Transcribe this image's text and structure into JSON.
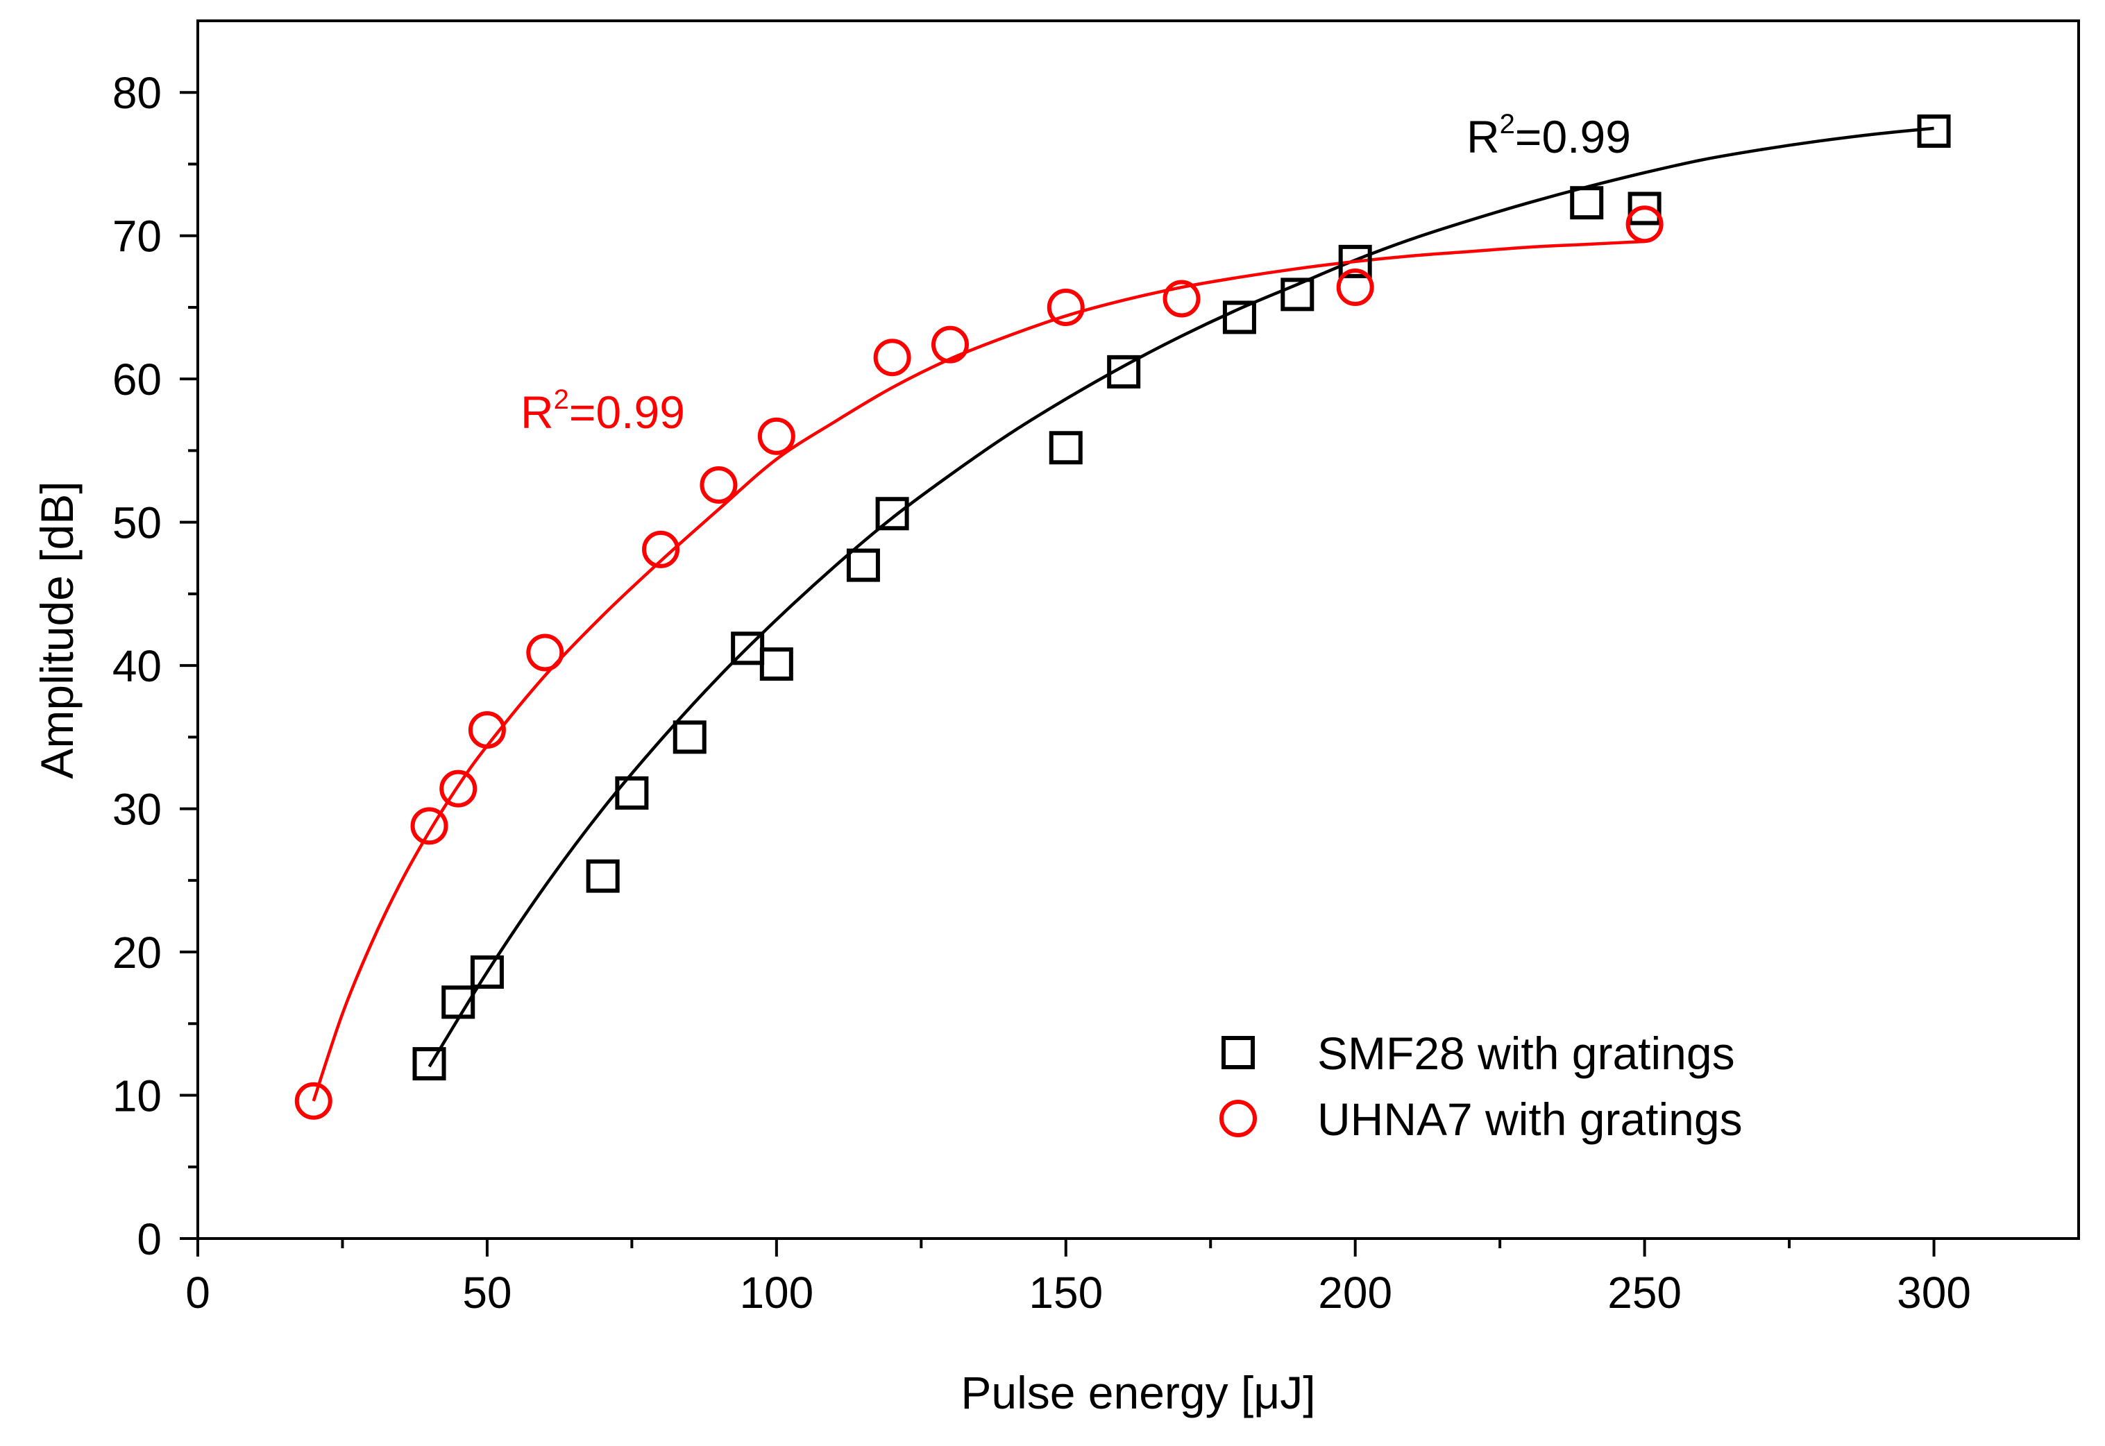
{
  "chart_data": {
    "type": "scatter",
    "title": "",
    "xlabel": "Pulse energy [μJ]",
    "ylabel": "Amplitude [dB]",
    "xlim": [
      0,
      325
    ],
    "ylim": [
      0,
      85
    ],
    "xticks": [
      0,
      50,
      100,
      150,
      200,
      250,
      300
    ],
    "yticks": [
      0,
      10,
      20,
      30,
      40,
      50,
      60,
      70,
      80
    ],
    "x_tick_labels": [
      "0",
      "50",
      "100",
      "150",
      "200",
      "250",
      "300"
    ],
    "y_tick_labels": [
      "0",
      "10",
      "20",
      "30",
      "40",
      "50",
      "60",
      "70",
      "80"
    ],
    "grid": false,
    "legend_position": "bottom-right",
    "series": [
      {
        "name": "SMF28 with gratings",
        "marker": "square",
        "color": "#000000",
        "x": [
          40,
          45,
          50,
          70,
          75,
          85,
          95,
          100,
          115,
          120,
          150,
          160,
          180,
          190,
          200,
          240,
          250,
          300
        ],
        "y": [
          12.2,
          16.5,
          18.6,
          25.3,
          31.1,
          35.0,
          41.2,
          40.1,
          47.0,
          50.6,
          55.2,
          60.5,
          64.3,
          65.9,
          68.2,
          72.3,
          71.9,
          77.3
        ],
        "fit": {
          "x": [
            40,
            50,
            60,
            70,
            80,
            90,
            100,
            110,
            120,
            130,
            140,
            150,
            160,
            170,
            180,
            190,
            200,
            210,
            220,
            230,
            240,
            250,
            260,
            270,
            280,
            290,
            300
          ],
          "y": [
            12.0,
            18.6,
            24.6,
            30.0,
            34.8,
            39.2,
            43.2,
            46.9,
            50.3,
            53.3,
            56.1,
            58.6,
            60.9,
            63.0,
            64.9,
            66.6,
            68.3,
            69.8,
            71.1,
            72.3,
            73.4,
            74.4,
            75.3,
            76.0,
            76.6,
            77.1,
            77.5
          ],
          "r2_label": "R2=0.99",
          "r2_base": "R",
          "r2_sup": "2",
          "r2_rest": "=0.99"
        }
      },
      {
        "name": "UHNA7 with gratings",
        "marker": "circle",
        "color": "#ff0000",
        "x": [
          20,
          40,
          45,
          50,
          60,
          80,
          90,
          100,
          120,
          130,
          150,
          170,
          200,
          250
        ],
        "y": [
          9.6,
          28.8,
          31.4,
          35.5,
          40.9,
          48.1,
          52.6,
          56.0,
          61.5,
          62.4,
          65.0,
          65.6,
          66.4,
          70.8
        ],
        "fit": {
          "x": [
            20,
            25,
            30,
            35,
            40,
            45,
            50,
            60,
            70,
            80,
            90,
            100,
            110,
            120,
            130,
            140,
            150,
            160,
            170,
            180,
            190,
            200,
            210,
            220,
            230,
            240,
            250
          ],
          "y": [
            9.6,
            15.7,
            20.6,
            24.8,
            28.4,
            31.6,
            34.4,
            39.3,
            43.5,
            47.3,
            50.9,
            54.4,
            57.0,
            59.4,
            61.4,
            63.0,
            64.4,
            65.5,
            66.4,
            67.1,
            67.7,
            68.2,
            68.6,
            68.9,
            69.2,
            69.4,
            69.6
          ],
          "r2_label": "R2=0.99",
          "r2_base": "R",
          "r2_sup": "2",
          "r2_rest": "=0.99"
        }
      }
    ]
  }
}
